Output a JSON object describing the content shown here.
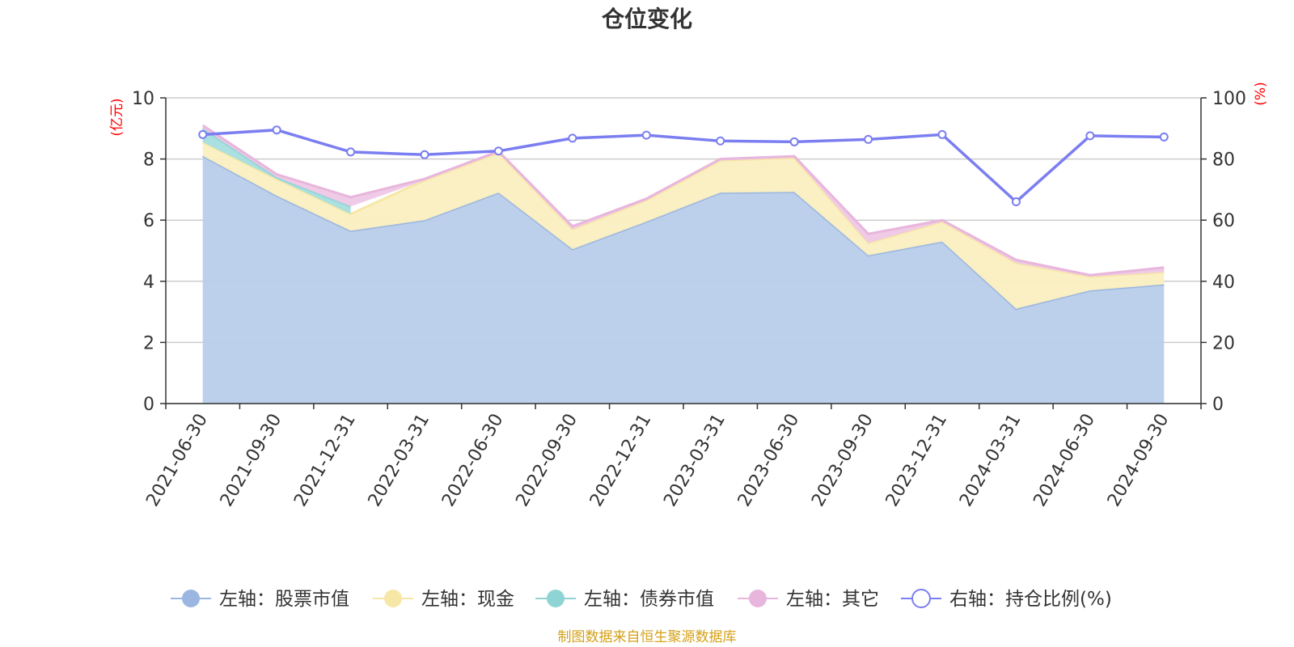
{
  "chart_data": {
    "type": "area",
    "title": "仓位变化",
    "left_unit": "(亿元)",
    "right_unit": "(%)",
    "source": "制图数据来自恒生聚源数据库",
    "categories": [
      "2021-06-30",
      "2021-09-30",
      "2021-12-31",
      "2022-03-31",
      "2022-06-30",
      "2022-09-30",
      "2022-12-31",
      "2023-03-31",
      "2023-06-30",
      "2023-09-30",
      "2023-12-31",
      "2024-03-31",
      "2024-06-30",
      "2024-09-30"
    ],
    "left_axis": {
      "min": 0,
      "max": 10,
      "ticks": [
        0,
        2,
        4,
        6,
        8,
        10
      ]
    },
    "right_axis": {
      "min": 0,
      "max": 100,
      "ticks": [
        0,
        20,
        40,
        60,
        80,
        100
      ]
    },
    "grid": true,
    "legend_position": "bottom",
    "series": [
      {
        "name": "左轴：股票市值",
        "axis": "left",
        "stacked": true,
        "color": "#9bb6e0",
        "fill": "#b8cdea",
        "values": [
          8.1,
          6.8,
          5.65,
          6.0,
          6.9,
          5.05,
          5.95,
          6.9,
          6.92,
          4.85,
          5.3,
          3.1,
          3.7,
          3.9
        ]
      },
      {
        "name": "左轴：现金",
        "axis": "left",
        "stacked": true,
        "color": "#f7e7a6",
        "fill": "#faefc1",
        "values": [
          0.45,
          0.55,
          0.55,
          1.3,
          1.3,
          0.65,
          0.7,
          1.05,
          1.12,
          0.4,
          0.65,
          1.5,
          0.45,
          0.4
        ]
      },
      {
        "name": "左轴：债券市值",
        "axis": "left",
        "stacked": true,
        "color": "#8fd4d4",
        "fill": "#a6dede",
        "values": [
          0.45,
          0.05,
          0.25,
          null,
          null,
          null,
          null,
          null,
          null,
          null,
          null,
          null,
          null,
          null
        ]
      },
      {
        "name": "左轴：其它",
        "axis": "left",
        "stacked": true,
        "color": "#e8b6dc",
        "fill": "#efc8e6",
        "values": [
          0.1,
          0.1,
          0.3,
          0.05,
          0.05,
          0.1,
          0.05,
          0.05,
          0.05,
          0.3,
          0.05,
          0.1,
          0.05,
          0.15
        ]
      },
      {
        "name": "右轴：持仓比例(%)",
        "axis": "right",
        "stacked": false,
        "color": "#7b7ef0",
        "values": [
          88,
          89.5,
          82.3,
          81.4,
          82.6,
          86.8,
          87.8,
          85.9,
          85.6,
          86.4,
          88,
          66,
          87.6,
          87.2
        ]
      }
    ],
    "colors": {
      "left_unit": "#ff0000",
      "right_unit": "#ff0000",
      "source": "#d4a017",
      "axis": "#333333",
      "grid": "#cccccc"
    }
  }
}
